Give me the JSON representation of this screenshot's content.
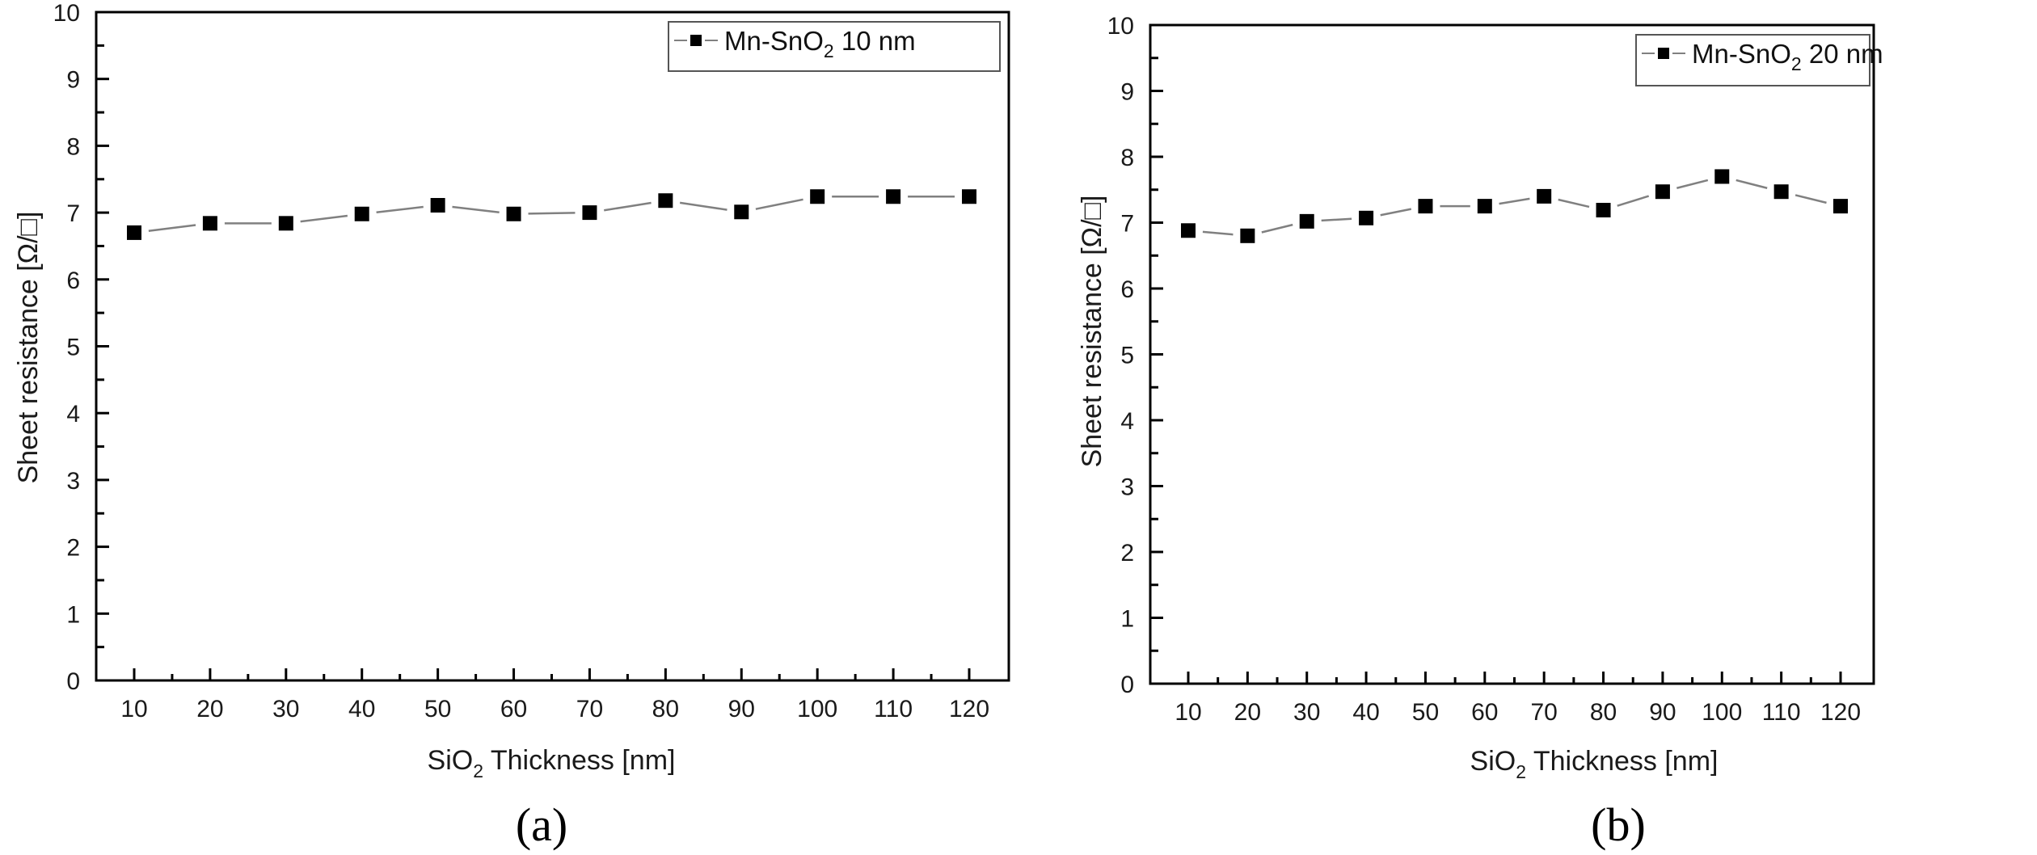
{
  "colors": {
    "marker": "#000000",
    "line": "#808080",
    "frame": "#000000",
    "legend_border": "#555555"
  },
  "chart_data": [
    {
      "type": "line",
      "panel_caption": "(a)",
      "xlabel": {
        "main": "SiO",
        "sub": "2",
        "rest": " Thickness [nm]"
      },
      "ylabel": "Sheet resistance [Ω/□]",
      "xlim": [
        5,
        125
      ],
      "ylim": [
        0,
        10
      ],
      "x_ticks": [
        10,
        20,
        30,
        40,
        50,
        60,
        70,
        80,
        90,
        100,
        110,
        120
      ],
      "x_tick_labels": [
        "10",
        "20",
        "30",
        "40",
        "50",
        "60",
        "70",
        "80",
        "90",
        "100",
        "110",
        "120"
      ],
      "y_ticks": [
        0,
        1,
        2,
        3,
        4,
        5,
        6,
        7,
        8,
        9,
        10
      ],
      "y_tick_labels": [
        "0",
        "1",
        "2",
        "3",
        "4",
        "5",
        "6",
        "7",
        "8",
        "9",
        "10"
      ],
      "grid": false,
      "legend_position": "top-right",
      "series": [
        {
          "name": {
            "main": "Mn-SnO",
            "sub": "2",
            "rest": " 10 nm"
          },
          "marker": "square",
          "x": [
            10,
            20,
            30,
            40,
            50,
            60,
            70,
            80,
            90,
            100,
            110,
            120
          ],
          "values": [
            6.7,
            6.84,
            6.84,
            6.98,
            7.11,
            6.98,
            7.0,
            7.18,
            7.01,
            7.24,
            7.24,
            7.24
          ]
        }
      ]
    },
    {
      "type": "line",
      "panel_caption": "(b)",
      "xlabel": {
        "main": "SiO",
        "sub": "2",
        "rest": " Thickness [nm]"
      },
      "ylabel": "Sheet resistance [Ω/□]",
      "xlim": [
        5,
        125
      ],
      "ylim": [
        0,
        10
      ],
      "x_ticks": [
        10,
        20,
        30,
        40,
        50,
        60,
        70,
        80,
        90,
        100,
        110,
        120
      ],
      "x_tick_labels": [
        "10",
        "20",
        "30",
        "40",
        "50",
        "60",
        "70",
        "80",
        "90",
        "100",
        "110",
        "120"
      ],
      "y_ticks": [
        0,
        1,
        2,
        3,
        4,
        5,
        6,
        7,
        8,
        9,
        10
      ],
      "y_tick_labels": [
        "0",
        "1",
        "2",
        "3",
        "4",
        "5",
        "6",
        "7",
        "8",
        "9",
        "10"
      ],
      "grid": false,
      "legend_position": "top-right",
      "series": [
        {
          "name": {
            "main": "Mn-SnO",
            "sub": "2",
            "rest": " 20 nm"
          },
          "marker": "square",
          "x": [
            10,
            20,
            30,
            40,
            50,
            60,
            70,
            80,
            90,
            100,
            110,
            120
          ],
          "values": [
            6.88,
            6.8,
            7.02,
            7.07,
            7.25,
            7.25,
            7.4,
            7.19,
            7.47,
            7.7,
            7.47,
            7.25
          ]
        }
      ]
    }
  ]
}
